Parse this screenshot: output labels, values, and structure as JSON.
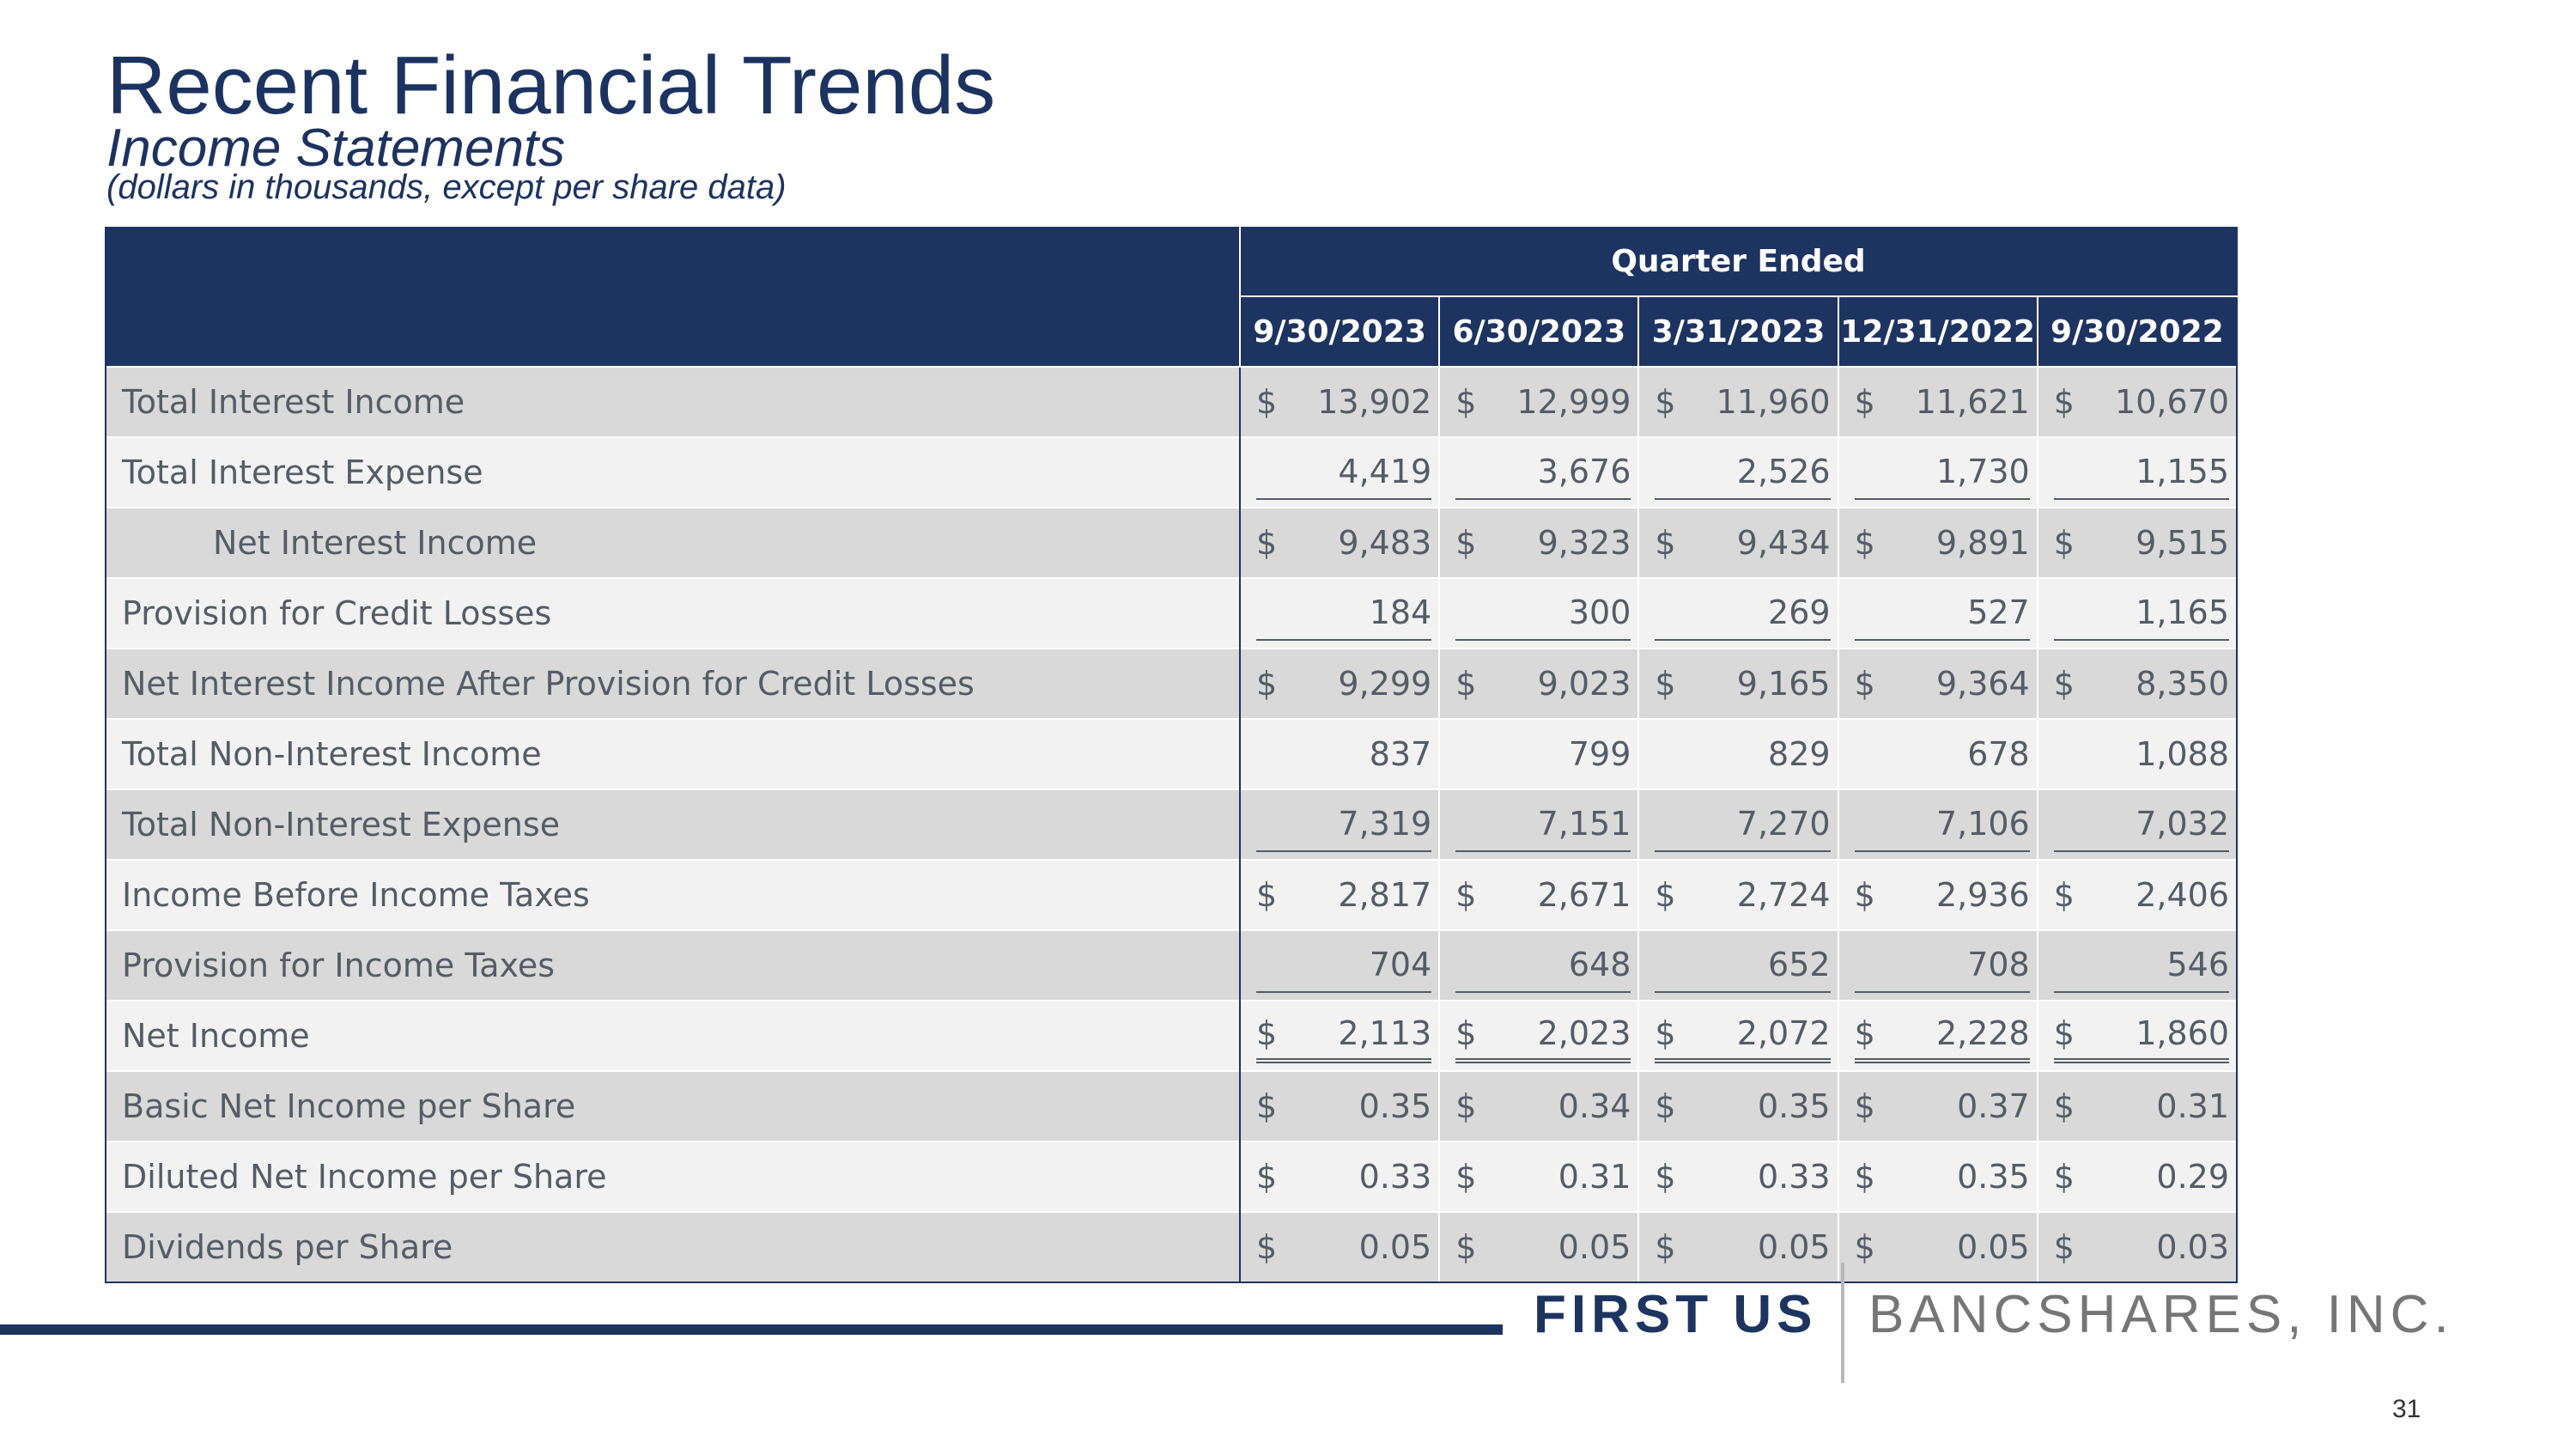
{
  "header": {
    "title": "Recent Financial Trends",
    "subtitle": "Income Statements",
    "note": "(dollars in thousands, except per share data)"
  },
  "table": {
    "group_header": "Quarter Ended",
    "columns": [
      "9/30/2023",
      "6/30/2023",
      "3/31/2023",
      "12/31/2022",
      "9/30/2022"
    ],
    "rows": [
      {
        "label": "Total Interest Income",
        "indent": false,
        "currency": true,
        "underline": "none",
        "values": [
          "13,902",
          "12,999",
          "11,960",
          "11,621",
          "10,670"
        ]
      },
      {
        "label": "Total Interest Expense",
        "indent": false,
        "currency": false,
        "underline": "single",
        "values": [
          "4,419",
          "3,676",
          "2,526",
          "1,730",
          "1,155"
        ]
      },
      {
        "label": "Net Interest Income",
        "indent": true,
        "currency": true,
        "underline": "none",
        "values": [
          "9,483",
          "9,323",
          "9,434",
          "9,891",
          "9,515"
        ]
      },
      {
        "label": "Provision for Credit Losses",
        "indent": false,
        "currency": false,
        "underline": "single",
        "values": [
          "184",
          "300",
          "269",
          "527",
          "1,165"
        ]
      },
      {
        "label": "Net Interest Income After Provision for Credit Losses",
        "indent": false,
        "currency": true,
        "underline": "none",
        "values": [
          "9,299",
          "9,023",
          "9,165",
          "9,364",
          "8,350"
        ]
      },
      {
        "label": "Total Non-Interest Income",
        "indent": false,
        "currency": false,
        "underline": "none",
        "values": [
          "837",
          "799",
          "829",
          "678",
          "1,088"
        ]
      },
      {
        "label": "Total Non-Interest Expense",
        "indent": false,
        "currency": false,
        "underline": "single",
        "values": [
          "7,319",
          "7,151",
          "7,270",
          "7,106",
          "7,032"
        ]
      },
      {
        "label": "Income Before Income Taxes",
        "indent": false,
        "currency": true,
        "underline": "none",
        "values": [
          "2,817",
          "2,671",
          "2,724",
          "2,936",
          "2,406"
        ]
      },
      {
        "label": "Provision for Income Taxes",
        "indent": false,
        "currency": false,
        "underline": "single",
        "values": [
          "704",
          "648",
          "652",
          "708",
          "546"
        ]
      },
      {
        "label": "Net Income",
        "indent": false,
        "currency": true,
        "underline": "double",
        "values": [
          "2,113",
          "2,023",
          "2,072",
          "2,228",
          "1,860"
        ]
      },
      {
        "label": "Basic Net Income per Share",
        "indent": false,
        "currency": true,
        "underline": "none",
        "values": [
          "0.35",
          "0.34",
          "0.35",
          "0.37",
          "0.31"
        ]
      },
      {
        "label": "Diluted Net Income per Share",
        "indent": false,
        "currency": true,
        "underline": "none",
        "values": [
          "0.33",
          "0.31",
          "0.33",
          "0.35",
          "0.29"
        ]
      },
      {
        "label": "Dividends per Share",
        "indent": false,
        "currency": true,
        "underline": "none",
        "values": [
          "0.05",
          "0.05",
          "0.05",
          "0.05",
          "0.03"
        ]
      }
    ],
    "currency_symbol": "$"
  },
  "footer": {
    "logo_bold": "FIRST US",
    "logo_regular": "BANCSHARES, INC.",
    "page_number": "31"
  },
  "colors": {
    "navy": "#1d3461",
    "row_dark": "#d9d9d9",
    "row_light": "#f2f2f2",
    "text_gray": "#555c66"
  }
}
